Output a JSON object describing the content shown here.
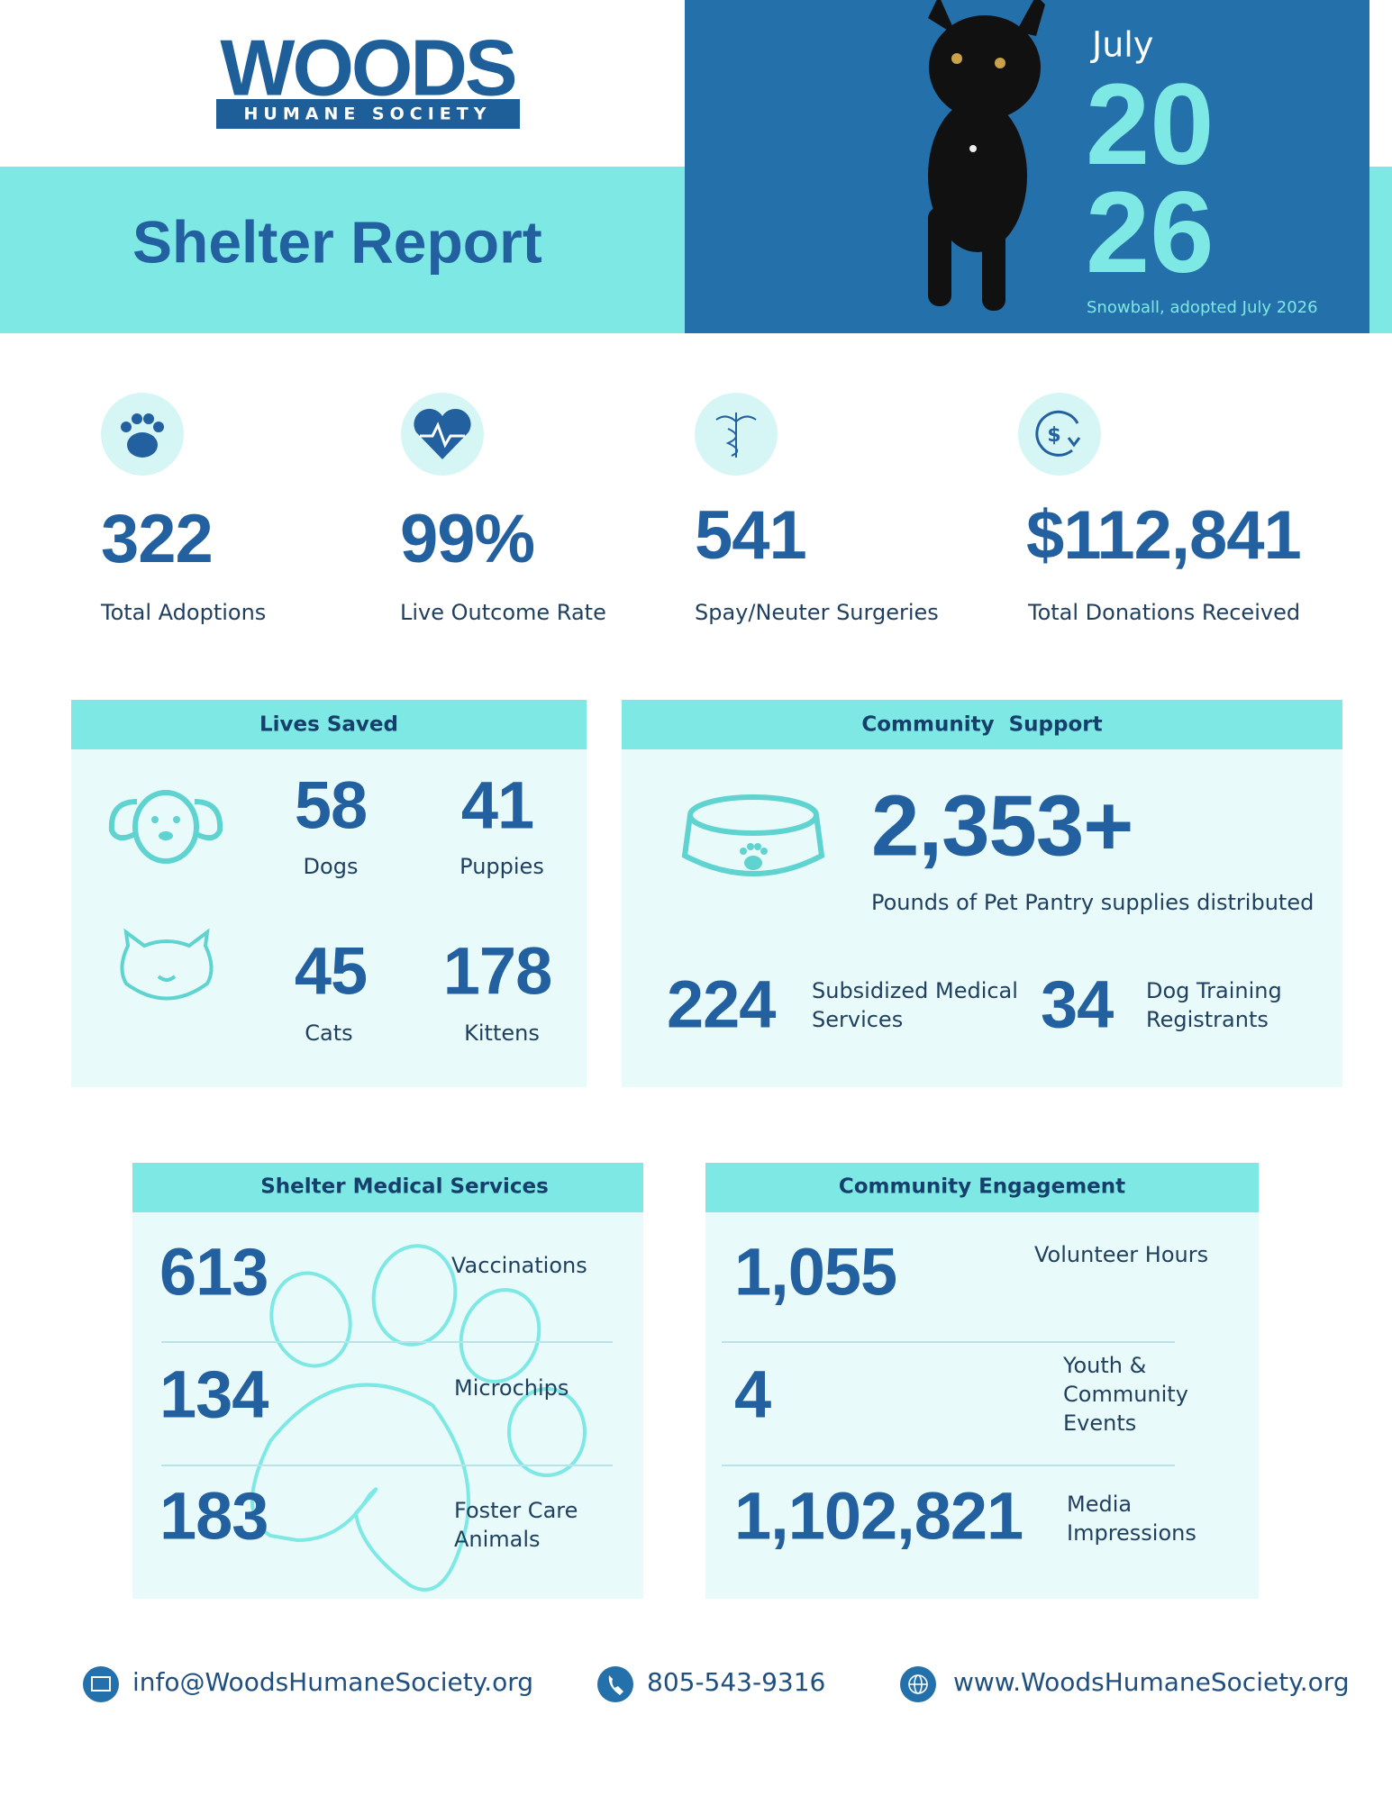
{
  "logo": {
    "name": "WOODS",
    "tagline": "HUMANE SOCIETY"
  },
  "header": {
    "title": "Shelter Report",
    "month": "July",
    "year_top": "20",
    "year_bottom": "26",
    "caption": "Snowball, adopted July 2026"
  },
  "stats": [
    {
      "value": "322",
      "label": "Total Adoptions"
    },
    {
      "value": "99%",
      "label": "Live Outcome Rate"
    },
    {
      "value": "541",
      "label": "Spay/Neuter Surgeries"
    },
    {
      "value": "$112,841",
      "label": "Total Donations Received"
    }
  ],
  "lives_saved": {
    "title": "Lives Saved",
    "items": [
      {
        "value": "58",
        "label": "Dogs"
      },
      {
        "value": "41",
        "label": "Puppies"
      },
      {
        "value": "45",
        "label": "Cats"
      },
      {
        "value": "178",
        "label": "Kittens"
      }
    ]
  },
  "community_support": {
    "title": "Community  Support",
    "pantry": {
      "value": "2,353+",
      "label": "Pounds of Pet Pantry supplies distributed"
    },
    "items": [
      {
        "value": "224",
        "label_lines": [
          "Subsidized Medical",
          "Services"
        ]
      },
      {
        "value": "34",
        "label_lines": [
          "Dog Training",
          "Registrants"
        ]
      }
    ]
  },
  "medical": {
    "title": "Shelter Medical Services",
    "items": [
      {
        "value": "613",
        "label_lines": [
          "Vaccinations"
        ]
      },
      {
        "value": "134",
        "label_lines": [
          "Microchips"
        ]
      },
      {
        "value": "183",
        "label_lines": [
          "Foster Care",
          "Animals"
        ]
      }
    ]
  },
  "engagement": {
    "title": "Community Engagement",
    "items": [
      {
        "value": "1,055",
        "label_lines": [
          "Volunteer Hours"
        ]
      },
      {
        "value": "4",
        "label_lines": [
          "Youth &",
          "Community",
          "Events"
        ]
      },
      {
        "value": "1,102,821",
        "label_lines": [
          "Media",
          "Impressions"
        ]
      }
    ]
  },
  "footer": {
    "email": "info@WoodsHumaneSociety.org",
    "phone": "805-543-9316",
    "website": "www.WoodsHumaneSociety.org"
  }
}
